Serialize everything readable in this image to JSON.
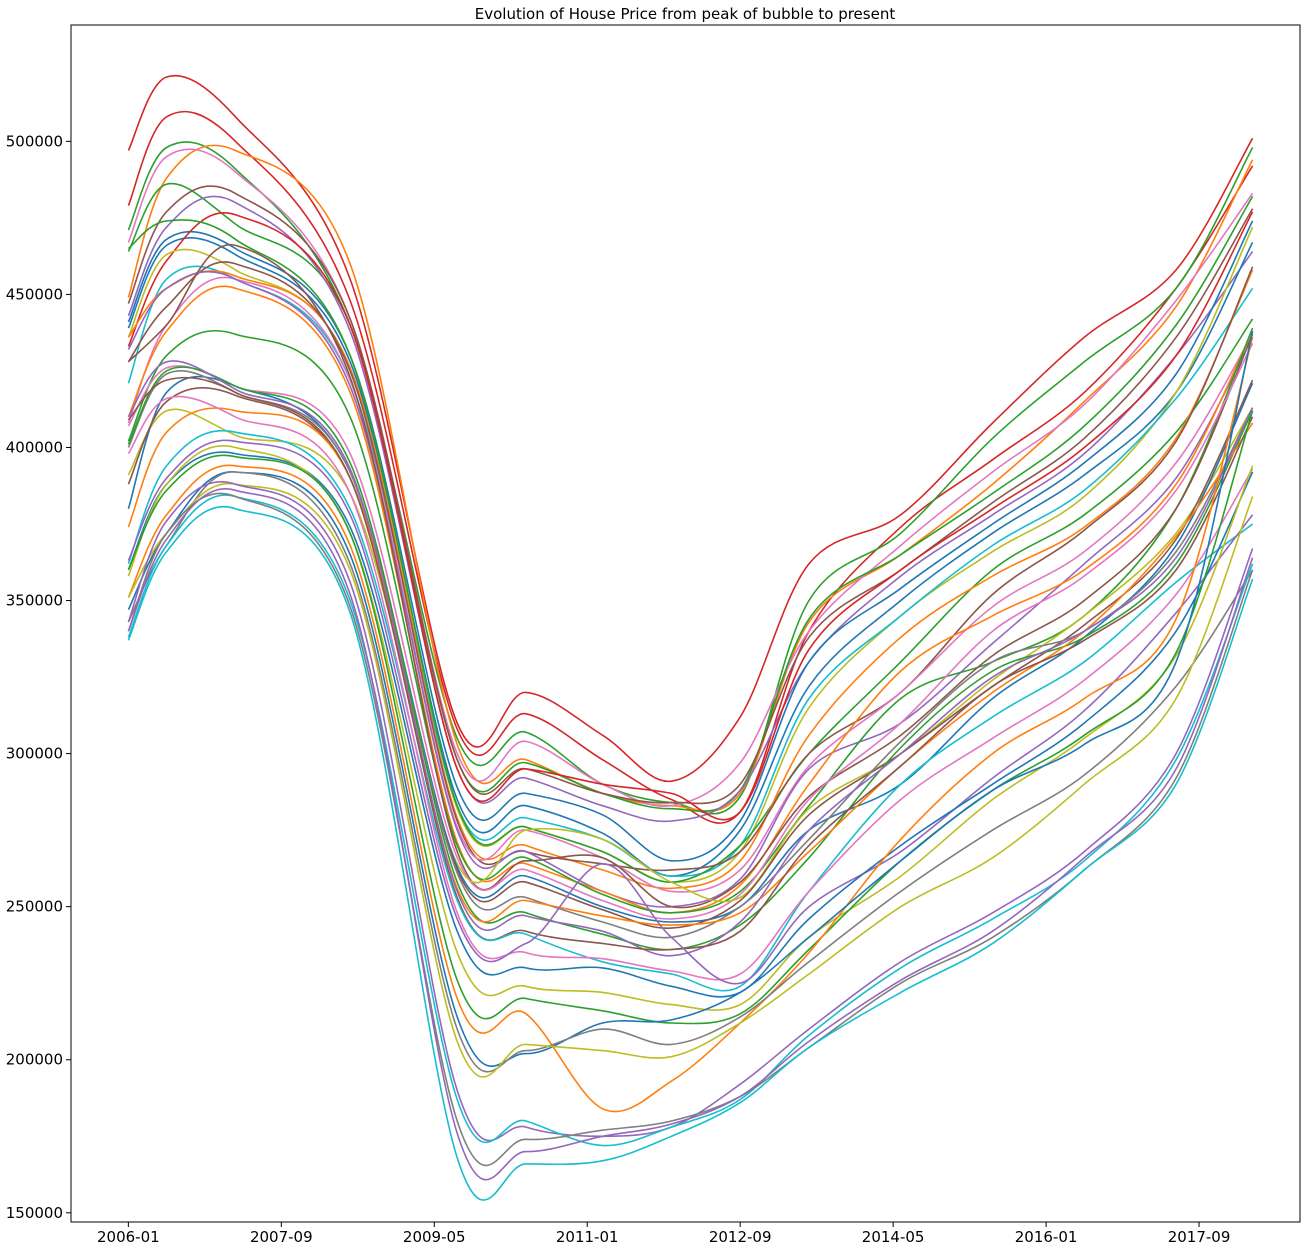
{
  "chart_data": {
    "type": "line",
    "title": "Evolution of House Price from peak of bubble to present",
    "xlabel": "",
    "ylabel": "",
    "x_ticks": [
      "2006-01",
      "2007-09",
      "2009-05",
      "2011-01",
      "2012-09",
      "2014-05",
      "2016-01",
      "2017-09"
    ],
    "y_ticks": [
      "150000",
      "200000",
      "250000",
      "300000",
      "350000",
      "400000",
      "450000",
      "500000"
    ],
    "xlim": [
      "2005-06",
      "2018-10"
    ],
    "ylim": [
      147000,
      538000
    ],
    "grid": false,
    "legend": "none",
    "palette": [
      "#1f77b4",
      "#ff7f0e",
      "#2ca02c",
      "#d62728",
      "#9467bd",
      "#8c564b",
      "#e377c2",
      "#7f7f7f",
      "#bcbd22",
      "#17becf"
    ],
    "series_note": "Approximately 40 unlabeled series, one color cycle repeated; values read at key months",
    "key_dates": [
      "2006-01",
      "2006-06",
      "2007-03",
      "2008-06",
      "2009-08",
      "2010-05",
      "2011-03",
      "2011-12",
      "2012-09",
      "2013-06",
      "2014-06",
      "2015-06",
      "2016-06",
      "2017-06",
      "2018-04"
    ],
    "series": [
      {
        "color": "#d62728",
        "values": [
          497000,
          521000,
          508000,
          455000,
          310000,
          320000,
          306000,
          291000,
          312000,
          362000,
          378000,
          408000,
          436000,
          458000,
          501000
        ]
      },
      {
        "color": "#d62728",
        "values": [
          479000,
          508000,
          500000,
          448000,
          308000,
          313000,
          298000,
          285000,
          281000,
          340000,
          374000,
          396000,
          418000,
          452000,
          492000
        ]
      },
      {
        "color": "#2ca02c",
        "values": [
          471000,
          498000,
          491000,
          440000,
          305000,
          307000,
          290000,
          284000,
          286000,
          350000,
          372000,
          403000,
          428000,
          452000,
          498000
        ]
      },
      {
        "color": "#ff7f0e",
        "values": [
          449000,
          488000,
          497000,
          460000,
          303000,
          298000,
          287000,
          283000,
          287000,
          343000,
          365000,
          388000,
          415000,
          446000,
          494000
        ]
      },
      {
        "color": "#e377c2",
        "values": [
          467000,
          495000,
          490000,
          442000,
          300000,
          304000,
          290000,
          283000,
          297000,
          340000,
          368000,
          392000,
          414000,
          448000,
          483000
        ]
      },
      {
        "color": "#2ca02c",
        "values": [
          464000,
          486000,
          473000,
          440000,
          298000,
          297000,
          287000,
          282000,
          288000,
          344000,
          365000,
          385000,
          407000,
          440000,
          482000
        ]
      },
      {
        "color": "#8c564b",
        "values": [
          447000,
          477000,
          483000,
          442000,
          298000,
          295000,
          287000,
          284000,
          290000,
          338000,
          360000,
          382000,
          403000,
          436000,
          478000
        ]
      },
      {
        "color": "#9467bd",
        "values": [
          443000,
          472000,
          480000,
          438000,
          295000,
          292000,
          283000,
          278000,
          288000,
          330000,
          358000,
          378000,
          398000,
          430000,
          464000
        ]
      },
      {
        "color": "#1f77b4",
        "values": [
          441000,
          468000,
          465000,
          430000,
          289000,
          287000,
          280000,
          265000,
          278000,
          330000,
          354000,
          375000,
          395000,
          424000,
          474000
        ]
      },
      {
        "color": "#1f77b4",
        "values": [
          439000,
          466000,
          463000,
          428000,
          285000,
          283000,
          274000,
          260000,
          275000,
          322000,
          350000,
          372000,
          391000,
          418000,
          467000
        ]
      },
      {
        "color": "#d62728",
        "values": [
          433000,
          461000,
          476000,
          440000,
          295000,
          295000,
          290000,
          287000,
          281000,
          334000,
          360000,
          380000,
          400000,
          430000,
          477000
        ]
      },
      {
        "color": "#bcbd22",
        "values": [
          436000,
          463000,
          458000,
          426000,
          282000,
          276000,
          268000,
          258000,
          268000,
          315000,
          345000,
          366000,
          384000,
          418000,
          472000
        ]
      },
      {
        "color": "#17becf",
        "values": [
          421000,
          455000,
          455000,
          422000,
          283000,
          279000,
          272000,
          260000,
          270000,
          318000,
          345000,
          368000,
          386000,
          416000,
          452000
        ]
      },
      {
        "color": "#2ca02c",
        "values": [
          465000,
          474000,
          468000,
          430000,
          283000,
          276000,
          268000,
          258000,
          270000,
          300000,
          330000,
          360000,
          378000,
          405000,
          442000
        ]
      },
      {
        "color": "#ff7f0e",
        "values": [
          436000,
          452000,
          456000,
          426000,
          279000,
          270000,
          262000,
          256000,
          265000,
          306000,
          338000,
          358000,
          374000,
          403000,
          458000
        ]
      },
      {
        "color": "#8c564b",
        "values": [
          428000,
          446000,
          460000,
          425000,
          278000,
          268000,
          264000,
          262000,
          268000,
          300000,
          320000,
          352000,
          373000,
          402000,
          459000
        ]
      },
      {
        "color": "#e377c2",
        "values": [
          408000,
          440000,
          455000,
          422000,
          276000,
          275000,
          266000,
          255000,
          262000,
          296000,
          320000,
          348000,
          366000,
          395000,
          437000
        ]
      },
      {
        "color": "#9467bd",
        "values": [
          432000,
          452000,
          455000,
          420000,
          275000,
          268000,
          255000,
          250000,
          259000,
          295000,
          310000,
          336000,
          362000,
          390000,
          436000
        ]
      },
      {
        "color": "#ff7f0e",
        "values": [
          410000,
          438000,
          452000,
          418000,
          271000,
          264000,
          255000,
          248000,
          257000,
          290000,
          327000,
          345000,
          360000,
          388000,
          438000
        ]
      },
      {
        "color": "#2ca02c",
        "values": [
          402000,
          430000,
          437000,
          410000,
          270000,
          266000,
          254000,
          248000,
          255000,
          283000,
          318000,
          330000,
          345000,
          380000,
          439000
        ]
      },
      {
        "color": "#8c564b",
        "values": [
          428000,
          440000,
          466000,
          423000,
          268000,
          265000,
          266000,
          250000,
          258000,
          286000,
          306000,
          332000,
          350000,
          380000,
          437000
        ]
      },
      {
        "color": "#e377c2",
        "values": [
          407000,
          426000,
          420000,
          398000,
          266000,
          262000,
          252000,
          246000,
          254000,
          285000,
          310000,
          340000,
          358000,
          386000,
          434000
        ]
      },
      {
        "color": "#bcbd22",
        "values": [
          391000,
          412000,
          404000,
          385000,
          264000,
          275000,
          272000,
          258000,
          253000,
          282000,
          300000,
          324000,
          345000,
          372000,
          413000
        ]
      },
      {
        "color": "#1f77b4",
        "values": [
          380000,
          418000,
          420000,
          392000,
          263000,
          260000,
          250000,
          245000,
          250000,
          275000,
          290000,
          318000,
          338000,
          368000,
          421000
        ]
      },
      {
        "color": "#8c564b",
        "values": [
          388000,
          415000,
          417000,
          390000,
          262000,
          258000,
          249000,
          243000,
          252000,
          280000,
          300000,
          322000,
          342000,
          370000,
          422000
        ]
      },
      {
        "color": "#7f7f7f",
        "values": [
          400000,
          424000,
          418000,
          392000,
          261000,
          253000,
          245000,
          240000,
          250000,
          272000,
          304000,
          330000,
          340000,
          366000,
          413000
        ]
      },
      {
        "color": "#2ca02c",
        "values": [
          401000,
          425000,
          420000,
          395000,
          258000,
          248000,
          241000,
          236000,
          244000,
          266000,
          302000,
          327000,
          338000,
          362000,
          412000
        ]
      },
      {
        "color": "#ff7f0e",
        "values": [
          374000,
          405000,
          412000,
          390000,
          256000,
          252000,
          247000,
          244000,
          248000,
          268000,
          296000,
          320000,
          340000,
          371000,
          408000
        ]
      },
      {
        "color": "#9467bd",
        "values": [
          410000,
          428000,
          419000,
          393000,
          255000,
          247000,
          242000,
          234000,
          245000,
          275000,
          300000,
          325000,
          340000,
          364000,
          413000
        ]
      },
      {
        "color": "#8c564b",
        "values": [
          409000,
          422000,
          418000,
          390000,
          253000,
          242000,
          238000,
          236000,
          242000,
          270000,
          296000,
          322000,
          337000,
          360000,
          410000
        ]
      },
      {
        "color": "#17becf",
        "values": [
          362000,
          394000,
          405000,
          380000,
          252000,
          241000,
          232000,
          228000,
          224000,
          255000,
          290000,
          312000,
          330000,
          356000,
          375000
        ]
      },
      {
        "color": "#e377c2",
        "values": [
          398000,
          416000,
          410000,
          385000,
          248000,
          235000,
          233000,
          229000,
          228000,
          255000,
          285000,
          305000,
          324000,
          352000,
          393000
        ]
      },
      {
        "color": "#9467bd",
        "values": [
          363000,
          390000,
          402000,
          378000,
          246000,
          238000,
          264000,
          240000,
          225000,
          250000,
          268000,
          292000,
          314000,
          346000,
          378000
        ]
      },
      {
        "color": "#1f77b4",
        "values": [
          360000,
          388000,
          398000,
          374000,
          242000,
          230000,
          230000,
          224000,
          222000,
          246000,
          270000,
          290000,
          310000,
          340000,
          392000
        ]
      },
      {
        "color": "#bcbd22",
        "values": [
          358000,
          388000,
          400000,
          372000,
          235000,
          224000,
          222000,
          218000,
          218000,
          240000,
          260000,
          285000,
          305000,
          332000,
          394000
        ]
      },
      {
        "color": "#2ca02c",
        "values": [
          360000,
          386000,
          397000,
          372000,
          226000,
          220000,
          216000,
          212000,
          215000,
          236000,
          265000,
          288000,
          306000,
          333000,
          412000
        ]
      },
      {
        "color": "#ff7f0e",
        "values": [
          351000,
          378000,
          394000,
          368000,
          220000,
          215000,
          184000,
          193000,
          212000,
          235000,
          272000,
          300000,
          318000,
          344000,
          436000
        ]
      },
      {
        "color": "#1f77b4",
        "values": [
          347000,
          372000,
          392000,
          365000,
          214000,
          202000,
          212000,
          213000,
          222000,
          240000,
          265000,
          288000,
          303000,
          330000,
          438000
        ]
      },
      {
        "color": "#7f7f7f",
        "values": [
          343000,
          368000,
          392000,
          362000,
          210000,
          203000,
          210000,
          205000,
          214000,
          232000,
          255000,
          275000,
          293000,
          322000,
          360000
        ]
      },
      {
        "color": "#bcbd22",
        "values": [
          351000,
          372000,
          388000,
          360000,
          206000,
          205000,
          203000,
          201000,
          212000,
          228000,
          250000,
          266000,
          290000,
          318000,
          384000
        ]
      },
      {
        "color": "#9467bd",
        "values": [
          343000,
          376000,
          388000,
          356000,
          190000,
          178000,
          175000,
          178000,
          192000,
          210000,
          232000,
          248000,
          268000,
          300000,
          367000
        ]
      },
      {
        "color": "#17becf",
        "values": [
          338000,
          368000,
          384000,
          350000,
          187000,
          180000,
          172000,
          178000,
          187000,
          208000,
          230000,
          246000,
          265000,
          298000,
          362000
        ]
      },
      {
        "color": "#7f7f7f",
        "values": [
          340000,
          372000,
          384000,
          348000,
          180000,
          174000,
          177000,
          180000,
          188000,
          204000,
          225000,
          240000,
          262000,
          292000,
          360000
        ]
      },
      {
        "color": "#9467bd",
        "values": [
          340000,
          370000,
          386000,
          352000,
          176000,
          170000,
          175000,
          179000,
          188000,
          206000,
          226000,
          242000,
          266000,
          295000,
          364000
        ]
      },
      {
        "color": "#17becf",
        "values": [
          337000,
          366000,
          380000,
          346000,
          168000,
          166000,
          167000,
          175000,
          186000,
          204000,
          222000,
          238000,
          262000,
          290000,
          357000
        ]
      }
    ]
  }
}
